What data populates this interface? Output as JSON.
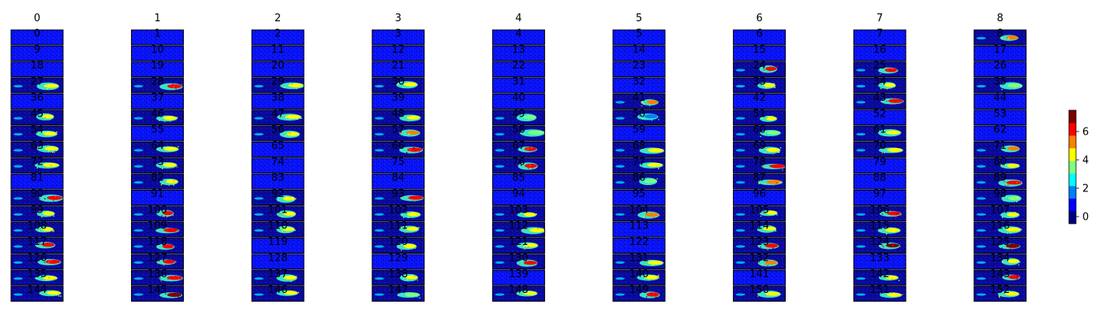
{
  "chart_data": {
    "type": "heatmap",
    "colormap": "jet",
    "column_titles": [
      "0",
      "1",
      "2",
      "3",
      "4",
      "5",
      "6",
      "7",
      "8"
    ],
    "panel_labels": [
      [
        "0",
        "1",
        "2",
        "3",
        "4",
        "5",
        "6",
        "7",
        "8"
      ],
      [
        "9",
        "10",
        "11",
        "12",
        "13",
        "14",
        "15",
        "16",
        "17"
      ],
      [
        "18",
        "19",
        "20",
        "21",
        "22",
        "23",
        "24",
        "25",
        "26"
      ],
      [
        "27",
        "28",
        "29",
        "30",
        "31",
        "32",
        "33",
        "34",
        "35"
      ],
      [
        "36",
        "37",
        "38",
        "39",
        "40",
        "41",
        "42",
        "43",
        "44"
      ],
      [
        "45",
        "46",
        "47",
        "48",
        "49",
        "50",
        "51",
        "52",
        "53"
      ],
      [
        "54",
        "55",
        "56",
        "57",
        "58",
        "59",
        "60",
        "61",
        "62"
      ],
      [
        "63",
        "64",
        "65",
        "66",
        "67",
        "68",
        "69",
        "70",
        "71"
      ],
      [
        "72",
        "73",
        "74",
        "75",
        "76",
        "77",
        "78",
        "79",
        "80"
      ],
      [
        "81",
        "82",
        "83",
        "84",
        "85",
        "86",
        "87",
        "88",
        "89"
      ],
      [
        "90",
        "91",
        "92",
        "93",
        "94",
        "95",
        "96",
        "97",
        "98"
      ],
      [
        "99",
        "100",
        "101",
        "102",
        "103",
        "104",
        "105",
        "106",
        "107"
      ],
      [
        "108",
        "109",
        "110",
        "111",
        "112",
        "113",
        "114",
        "115",
        "116"
      ],
      [
        "117",
        "118",
        "119",
        "120",
        "121",
        "122",
        "123",
        "124",
        "125"
      ],
      [
        "126",
        "127",
        "128",
        "129",
        "130",
        "131",
        "132",
        "133",
        "134"
      ],
      [
        "135",
        "136",
        "137",
        "138",
        "139",
        "140",
        "141",
        "142",
        "143"
      ],
      [
        "144",
        "145",
        "146",
        "147",
        "148",
        "149",
        "150",
        "151",
        "152"
      ]
    ],
    "panel_levels": [
      [
        0,
        0,
        0,
        0,
        0,
        0,
        0,
        0,
        5
      ],
      [
        0,
        0,
        0,
        0,
        0,
        0,
        0,
        0,
        0
      ],
      [
        0,
        0,
        0,
        0,
        0,
        0,
        6,
        6,
        0
      ],
      [
        4,
        6,
        4,
        4,
        0,
        0,
        4,
        4,
        3
      ],
      [
        0,
        0,
        0,
        0,
        0,
        5,
        0,
        6,
        0
      ],
      [
        4,
        4,
        4,
        4,
        3,
        1,
        4,
        0,
        0
      ],
      [
        4,
        0,
        4,
        5,
        3,
        0,
        3,
        4,
        0
      ],
      [
        4,
        4,
        0,
        6,
        6,
        4,
        4,
        4,
        5
      ],
      [
        4,
        4,
        0,
        0,
        6,
        4,
        6,
        0,
        4
      ],
      [
        0,
        4,
        0,
        0,
        0,
        3,
        5,
        0,
        6
      ],
      [
        6,
        0,
        4,
        6,
        0,
        0,
        0,
        0,
        3
      ],
      [
        4,
        6,
        4,
        4,
        4,
        5,
        4,
        6,
        4
      ],
      [
        4,
        6,
        4,
        4,
        4,
        0,
        4,
        4,
        4
      ],
      [
        6,
        6,
        0,
        4,
        4,
        0,
        6,
        7,
        7
      ],
      [
        6,
        6,
        0,
        0,
        6,
        4,
        5,
        0,
        4
      ],
      [
        4,
        6,
        4,
        4,
        0,
        4,
        0,
        4,
        6
      ],
      [
        4,
        7,
        4,
        3,
        4,
        6,
        4,
        4,
        4
      ]
    ],
    "colorbar": {
      "min": -0.5,
      "max": 7.5,
      "ticks": [
        0,
        2,
        4,
        6
      ],
      "tick_labels": [
        "0",
        "2",
        "4",
        "6"
      ],
      "colors": [
        "#00007f",
        "#0000ff",
        "#007fff",
        "#00ffff",
        "#7fff7f",
        "#ffff00",
        "#ff7f00",
        "#ff0000",
        "#7f0000"
      ]
    }
  }
}
